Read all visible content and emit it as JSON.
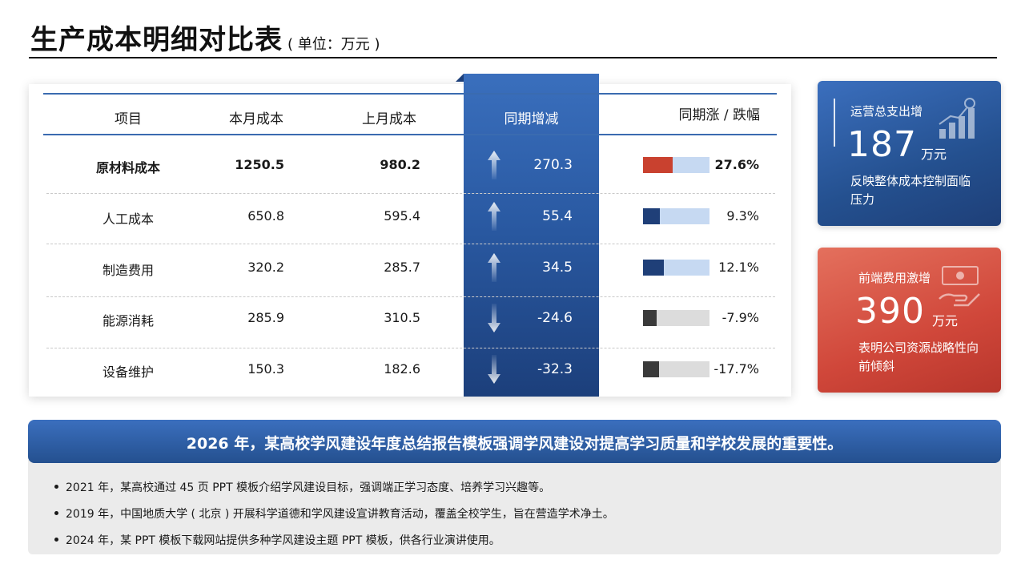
{
  "page": {
    "title": "生产成本明细对比表",
    "unit": "( 单位：万元 )"
  },
  "table": {
    "headers": {
      "item": "项目",
      "current": "本月成本",
      "previous": "上月成本",
      "change": "同期增减",
      "percent": "同期涨 / 跌幅"
    },
    "rows": [
      {
        "item": "原材料成本",
        "current": "1250.5",
        "previous": "980.2",
        "change": "270.3",
        "percent": "27.6%",
        "direction": "up",
        "bold": true,
        "bar_fraction": 0.44,
        "bar_color": "#c9412f",
        "track_color": "#c6d9f2"
      },
      {
        "item": "人工成本",
        "current": "650.8",
        "previous": "595.4",
        "change": "55.4",
        "percent": "9.3%",
        "direction": "up",
        "bold": false,
        "bar_fraction": 0.25,
        "bar_color": "#1f3f78",
        "track_color": "#c6d9f2"
      },
      {
        "item": "制造费用",
        "current": "320.2",
        "previous": "285.7",
        "change": "34.5",
        "percent": "12.1%",
        "direction": "up",
        "bold": false,
        "bar_fraction": 0.31,
        "bar_color": "#1f3f78",
        "track_color": "#c6d9f2"
      },
      {
        "item": "能源消耗",
        "current": "285.9",
        "previous": "310.5",
        "change": "-24.6",
        "percent": "-7.9%",
        "direction": "down",
        "bold": false,
        "bar_fraction": 0.21,
        "bar_color": "#3a3a3a",
        "track_color": "#dcdcdc"
      },
      {
        "item": "设备维护",
        "current": "150.3",
        "previous": "182.6",
        "change": "-32.3",
        "percent": "-17.7%",
        "direction": "down",
        "bold": false,
        "bar_fraction": 0.24,
        "bar_color": "#3a3a3a",
        "track_color": "#dcdcdc"
      }
    ]
  },
  "kpis": {
    "operating": {
      "label": "运营总支出增",
      "value": "187",
      "unit": "万元",
      "desc": "反映整体成本控制面临压力",
      "icon": "growth-chart-icon"
    },
    "frontend": {
      "label": "前端费用激增",
      "value": "390",
      "unit": "万元",
      "desc": "表明公司资源战略性向前倾斜",
      "icon": "cash-hand-icon"
    }
  },
  "banner": {
    "headline": "2026 年，某高校学风建设年度总结报告模板强调学风建设对提高学习质量和学校发展的重要性。"
  },
  "notes": [
    "2021 年，某高校通过 45 页 PPT 模板介绍学风建设目标，强调端正学习态度、培养学习兴趣等。",
    "2019 年，中国地质大学 ( 北京 ) 开展科学道德和学风建设宣讲教育活动，覆盖全校学生，旨在营造学术净土。",
    "2024 年，某 PPT 模板下载网站提供多种学风建设主题 PPT 模板，供各行业演讲使用。"
  ],
  "colors": {
    "accent_blue": "#2a5aa3",
    "accent_red": "#d0473a"
  }
}
